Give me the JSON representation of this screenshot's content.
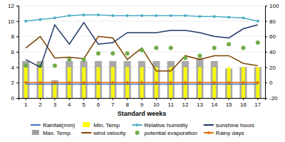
{
  "chart_data": {
    "type": "bar",
    "xlabel": "Standard weeks",
    "categories": [
      "1",
      "2",
      "3",
      "4",
      "5",
      "6",
      "7",
      "8",
      "9",
      "10",
      "11",
      "12",
      "13",
      "14",
      "15",
      "16",
      "17"
    ],
    "ylim": [
      0,
      12
    ],
    "yticks": [
      0,
      2,
      4,
      6,
      8,
      10,
      12
    ],
    "y2lim": [
      -20,
      100
    ],
    "y2ticks": [
      -20,
      0,
      20,
      40,
      60,
      80,
      100
    ],
    "grid": true,
    "legend": "bottom",
    "series": [
      {
        "name": "Rainfall(mm)",
        "type": "line",
        "color": "#4472C4",
        "values": [
          1.8,
          1.8,
          1.8,
          1.8,
          1.8,
          1.8,
          1.8,
          1.8,
          1.8,
          1.8,
          1.8,
          1.8,
          1.8,
          1.8,
          1.8,
          1.8,
          1.8
        ]
      },
      {
        "name": "Max. Temp",
        "type": "bar",
        "color": "#A0A0A0",
        "values": [
          4.8,
          4.8,
          2.3,
          4.8,
          4.8,
          4.8,
          4.8,
          4.8,
          4.8,
          4.8,
          4.8,
          4.8,
          5.2,
          4.8,
          3.8,
          4.0,
          4.0
        ]
      },
      {
        "name": "Min. Temp",
        "type": "bar",
        "color": "#FFFF00",
        "values": [
          4.0,
          4.0,
          2.0,
          4.0,
          4.0,
          4.0,
          4.0,
          4.0,
          4.0,
          4.0,
          4.0,
          4.0,
          4.0,
          4.0,
          4.0,
          4.0,
          4.0
        ]
      },
      {
        "name": "wind velocity",
        "type": "line",
        "color": "#7F3F00",
        "values": [
          6.5,
          8.0,
          5.2,
          5.3,
          5.1,
          8.0,
          7.8,
          5.0,
          6.5,
          3.5,
          3.5,
          5.5,
          5.0,
          5.5,
          5.5,
          4.5,
          4.2
        ]
      },
      {
        "name": "Relative humidity",
        "type": "line",
        "color": "#4BACC6",
        "marker": "circle",
        "axis": "y2",
        "values": [
          80,
          82,
          84,
          87,
          88,
          88,
          87,
          87,
          87,
          87,
          87,
          87,
          86,
          86,
          85,
          84,
          80
        ]
      },
      {
        "name": "potential evaporation",
        "type": "scatter",
        "color": "#70AD47",
        "marker": "circle",
        "line_style": "none",
        "values": [
          4.2,
          4.2,
          4.2,
          5.0,
          5.0,
          5.8,
          5.8,
          5.8,
          6.2,
          6.5,
          6.5,
          5.2,
          5.5,
          6.5,
          7.0,
          6.5,
          7.2
        ]
      },
      {
        "name": "sunshine hours",
        "type": "line",
        "color": "#1F3864",
        "values": [
          5.0,
          4.0,
          9.5,
          7.0,
          9.8,
          7.0,
          7.2,
          8.5,
          8.5,
          8.5,
          8.8,
          8.8,
          8.5,
          8.0,
          7.8,
          9.0,
          9.5
        ]
      },
      {
        "name": "Rainy days",
        "type": "line",
        "color": "#E36C09",
        "marker": "circle",
        "values": [
          2.0,
          2.0,
          2.0,
          2.0,
          2.0,
          2.0,
          2.0,
          2.0,
          2.0,
          2.0,
          2.0,
          2.0,
          2.0,
          2.0,
          2.0,
          2.0,
          2.0
        ]
      }
    ]
  }
}
